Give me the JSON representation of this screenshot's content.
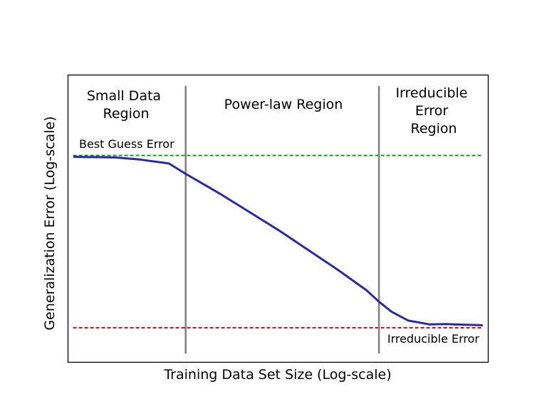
{
  "chart_data": {
    "type": "line",
    "xlabel": "Training Data Set Size (Log-scale)",
    "ylabel": "Generalization Error (Log-scale)",
    "xlim": [
      0,
      100
    ],
    "ylim": [
      0,
      100
    ],
    "ticks": "none",
    "grid": false,
    "series": [
      {
        "name": "",
        "color": "#2b2b9a",
        "x": [
          1.5,
          11,
          17,
          24,
          28,
          36,
          50,
          64,
          71,
          74,
          77,
          81,
          86,
          90,
          94,
          98.5
        ],
        "y": [
          71.5,
          71.3,
          70.6,
          69.2,
          65.6,
          58.8,
          46.1,
          32.4,
          25.1,
          21.1,
          17.6,
          14.5,
          13.2,
          13.3,
          13.1,
          12.9
        ]
      }
    ],
    "reference_lines": [
      {
        "orientation": "horizontal",
        "value": 72,
        "style": "dashed",
        "color": "#1a9a1a",
        "label": "Best Guess Error"
      },
      {
        "orientation": "horizontal",
        "value": 12,
        "style": "dashed",
        "color": "#c41414",
        "label": "Irreducible Error"
      }
    ],
    "region_boundaries": [
      {
        "value": 28,
        "color": "#808080"
      },
      {
        "value": 74,
        "color": "#808080"
      }
    ],
    "regions": [
      {
        "lines": [
          "Small Data",
          "Region"
        ]
      },
      {
        "lines": [
          "Power-law Region"
        ]
      },
      {
        "lines": [
          "Irreducible",
          "Error",
          "Region"
        ]
      }
    ]
  }
}
